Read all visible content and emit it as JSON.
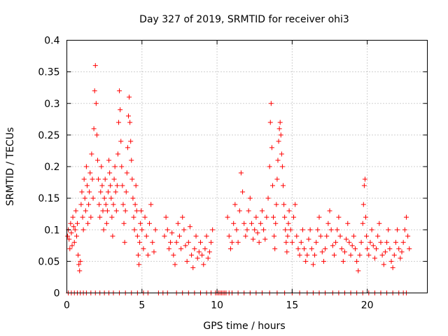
{
  "chart_data": {
    "type": "scatter",
    "title": "Day 327 of 2019, SRMTID for receiver ohi3",
    "xlabel": "GPS time / hours",
    "ylabel": "SRMTID / TECUs",
    "xlim": [
      0,
      24
    ],
    "ylim": [
      0,
      0.4
    ],
    "xticks": [
      0,
      5,
      10,
      15,
      20
    ],
    "xtick_labels": [
      "0",
      "5",
      "10",
      "15",
      "20"
    ],
    "yticks": [
      0,
      0.05,
      0.1,
      0.15,
      0.2,
      0.25,
      0.3,
      0.35,
      0.4
    ],
    "ytick_labels": [
      "0",
      "0.05",
      "0.1",
      "0.15",
      "0.2",
      "0.25",
      "0.3",
      "0.35",
      "0.4"
    ],
    "grid": true,
    "marker": "+",
    "color": "#ff0000",
    "series": [
      {
        "name": "SRMTID",
        "points": [
          [
            0.05,
            0.09
          ],
          [
            0.1,
            0.1
          ],
          [
            0.15,
            0.085
          ],
          [
            0.2,
            0.07
          ],
          [
            0.25,
            0.11
          ],
          [
            0.3,
            0.095
          ],
          [
            0.35,
            0.075
          ],
          [
            0.4,
            0.12
          ],
          [
            0.45,
            0.105
          ],
          [
            0.5,
            0.08
          ],
          [
            0.55,
            0.1
          ],
          [
            0.6,
            0.13
          ],
          [
            0.65,
            0.09
          ],
          [
            0.7,
            0.11
          ],
          [
            0.75,
            0.06
          ],
          [
            0.8,
            0.045
          ],
          [
            0.85,
            0.035
          ],
          [
            0.9,
            0.05
          ],
          [
            0.95,
            0.14
          ],
          [
            1.0,
            0.16
          ],
          [
            1.05,
            0.12
          ],
          [
            1.1,
            0.1
          ],
          [
            1.15,
            0.18
          ],
          [
            1.2,
            0.15
          ],
          [
            1.25,
            0.13
          ],
          [
            1.3,
            0.2
          ],
          [
            1.35,
            0.17
          ],
          [
            1.4,
            0.11
          ],
          [
            1.45,
            0.14
          ],
          [
            1.5,
            0.16
          ],
          [
            1.55,
            0.19
          ],
          [
            1.6,
            0.12
          ],
          [
            1.65,
            0.22
          ],
          [
            1.7,
            0.18
          ],
          [
            1.75,
            0.15
          ],
          [
            1.8,
            0.26
          ],
          [
            1.85,
            0.32
          ],
          [
            1.9,
            0.36
          ],
          [
            1.95,
            0.3
          ],
          [
            2.0,
            0.25
          ],
          [
            2.05,
            0.21
          ],
          [
            2.1,
            0.18
          ],
          [
            2.15,
            0.14
          ],
          [
            2.2,
            0.12
          ],
          [
            2.25,
            0.16
          ],
          [
            2.3,
            0.2
          ],
          [
            2.35,
            0.17
          ],
          [
            2.4,
            0.13
          ],
          [
            2.45,
            0.1
          ],
          [
            2.5,
            0.15
          ],
          [
            2.55,
            0.18
          ],
          [
            2.6,
            0.14
          ],
          [
            2.65,
            0.11
          ],
          [
            2.7,
            0.13
          ],
          [
            2.75,
            0.16
          ],
          [
            2.8,
            0.21
          ],
          [
            2.85,
            0.19
          ],
          [
            2.9,
            0.17
          ],
          [
            2.95,
            0.15
          ],
          [
            3.0,
            0.12
          ],
          [
            3.05,
            0.09
          ],
          [
            3.1,
            0.14
          ],
          [
            3.15,
            0.18
          ],
          [
            3.2,
            0.2
          ],
          [
            3.25,
            0.16
          ],
          [
            3.3,
            0.13
          ],
          [
            3.35,
            0.17
          ],
          [
            3.4,
            0.22
          ],
          [
            3.45,
            0.27
          ],
          [
            3.5,
            0.32
          ],
          [
            3.55,
            0.29
          ],
          [
            3.6,
            0.24
          ],
          [
            3.65,
            0.2
          ],
          [
            3.7,
            0.17
          ],
          [
            3.75,
            0.14
          ],
          [
            3.8,
            0.11
          ],
          [
            3.85,
            0.08
          ],
          [
            3.9,
            0.13
          ],
          [
            3.95,
            0.16
          ],
          [
            4.0,
            0.19
          ],
          [
            4.05,
            0.23
          ],
          [
            4.1,
            0.28
          ],
          [
            4.15,
            0.31
          ],
          [
            4.2,
            0.27
          ],
          [
            4.25,
            0.24
          ],
          [
            4.3,
            0.21
          ],
          [
            4.35,
            0.18
          ],
          [
            4.4,
            0.15
          ],
          [
            4.45,
            0.12
          ],
          [
            4.5,
            0.1
          ],
          [
            4.55,
            0.14
          ],
          [
            4.6,
            0.17
          ],
          [
            4.65,
            0.13
          ],
          [
            4.7,
            0.09
          ],
          [
            4.75,
            0.06
          ],
          [
            4.8,
            0.045
          ],
          [
            4.85,
            0.08
          ],
          [
            4.9,
            0.11
          ],
          [
            4.95,
            0.13
          ],
          [
            5.0,
            0.1
          ],
          [
            5.1,
            0.07
          ],
          [
            5.2,
            0.12
          ],
          [
            5.3,
            0.09
          ],
          [
            5.4,
            0.06
          ],
          [
            5.5,
            0.11
          ],
          [
            5.6,
            0.14
          ],
          [
            5.7,
            0.08
          ],
          [
            5.8,
            0.065
          ],
          [
            5.9,
            0.1
          ],
          [
            6.5,
            0.09
          ],
          [
            6.6,
            0.12
          ],
          [
            6.7,
            0.1
          ],
          [
            6.8,
            0.07
          ],
          [
            6.9,
            0.08
          ],
          [
            7.0,
            0.095
          ],
          [
            7.1,
            0.06
          ],
          [
            7.2,
            0.045
          ],
          [
            7.3,
            0.08
          ],
          [
            7.4,
            0.11
          ],
          [
            7.5,
            0.09
          ],
          [
            7.6,
            0.07
          ],
          [
            7.7,
            0.12
          ],
          [
            7.8,
            0.1
          ],
          [
            7.9,
            0.075
          ],
          [
            8.0,
            0.05
          ],
          [
            8.1,
            0.08
          ],
          [
            8.2,
            0.105
          ],
          [
            8.3,
            0.06
          ],
          [
            8.4,
            0.04
          ],
          [
            8.5,
            0.07
          ],
          [
            8.6,
            0.09
          ],
          [
            8.7,
            0.055
          ],
          [
            8.8,
            0.065
          ],
          [
            8.9,
            0.08
          ],
          [
            9.0,
            0.06
          ],
          [
            9.1,
            0.045
          ],
          [
            9.2,
            0.07
          ],
          [
            9.3,
            0.09
          ],
          [
            9.4,
            0.055
          ],
          [
            9.5,
            0.065
          ],
          [
            9.6,
            0.08
          ],
          [
            9.7,
            0.1
          ],
          [
            10.7,
            0.12
          ],
          [
            10.8,
            0.09
          ],
          [
            10.9,
            0.07
          ],
          [
            11.0,
            0.08
          ],
          [
            11.1,
            0.11
          ],
          [
            11.2,
            0.14
          ],
          [
            11.3,
            0.1
          ],
          [
            11.4,
            0.08
          ],
          [
            11.5,
            0.13
          ],
          [
            11.6,
            0.19
          ],
          [
            11.7,
            0.16
          ],
          [
            11.8,
            0.11
          ],
          [
            11.9,
            0.09
          ],
          [
            12.0,
            0.1
          ],
          [
            12.1,
            0.13
          ],
          [
            12.2,
            0.15
          ],
          [
            12.3,
            0.11
          ],
          [
            12.4,
            0.085
          ],
          [
            12.5,
            0.1
          ],
          [
            12.6,
            0.12
          ],
          [
            12.7,
            0.095
          ],
          [
            12.8,
            0.08
          ],
          [
            12.9,
            0.11
          ],
          [
            13.0,
            0.13
          ],
          [
            13.1,
            0.1
          ],
          [
            13.2,
            0.085
          ],
          [
            13.3,
            0.12
          ],
          [
            13.4,
            0.15
          ],
          [
            13.5,
            0.2
          ],
          [
            13.55,
            0.27
          ],
          [
            13.6,
            0.3
          ],
          [
            13.65,
            0.23
          ],
          [
            13.7,
            0.17
          ],
          [
            13.75,
            0.12
          ],
          [
            13.8,
            0.09
          ],
          [
            13.85,
            0.07
          ],
          [
            13.9,
            0.11
          ],
          [
            13.95,
            0.14
          ],
          [
            14.0,
            0.18
          ],
          [
            14.05,
            0.21
          ],
          [
            14.1,
            0.24
          ],
          [
            14.15,
            0.26
          ],
          [
            14.2,
            0.27
          ],
          [
            14.25,
            0.25
          ],
          [
            14.3,
            0.22
          ],
          [
            14.35,
            0.2
          ],
          [
            14.4,
            0.17
          ],
          [
            14.45,
            0.14
          ],
          [
            14.5,
            0.12
          ],
          [
            14.55,
            0.1
          ],
          [
            14.6,
            0.08
          ],
          [
            14.65,
            0.065
          ],
          [
            14.7,
            0.09
          ],
          [
            14.75,
            0.11
          ],
          [
            14.8,
            0.13
          ],
          [
            14.9,
            0.1
          ],
          [
            15.0,
            0.08
          ],
          [
            15.1,
            0.12
          ],
          [
            15.2,
            0.14
          ],
          [
            15.3,
            0.09
          ],
          [
            15.4,
            0.07
          ],
          [
            15.5,
            0.06
          ],
          [
            15.6,
            0.08
          ],
          [
            15.7,
            0.1
          ],
          [
            15.8,
            0.07
          ],
          [
            15.9,
            0.05
          ],
          [
            16.0,
            0.06
          ],
          [
            16.1,
            0.085
          ],
          [
            16.2,
            0.1
          ],
          [
            16.3,
            0.07
          ],
          [
            16.4,
            0.045
          ],
          [
            16.5,
            0.06
          ],
          [
            16.6,
            0.08
          ],
          [
            16.7,
            0.1
          ],
          [
            16.8,
            0.12
          ],
          [
            16.9,
            0.09
          ],
          [
            17.0,
            0.065
          ],
          [
            17.1,
            0.05
          ],
          [
            17.2,
            0.07
          ],
          [
            17.3,
            0.09
          ],
          [
            17.4,
            0.11
          ],
          [
            17.5,
            0.13
          ],
          [
            17.6,
            0.1
          ],
          [
            17.7,
            0.075
          ],
          [
            17.8,
            0.06
          ],
          [
            17.9,
            0.08
          ],
          [
            18.0,
            0.1
          ],
          [
            18.1,
            0.12
          ],
          [
            18.2,
            0.09
          ],
          [
            18.3,
            0.07
          ],
          [
            18.4,
            0.05
          ],
          [
            18.5,
            0.065
          ],
          [
            18.6,
            0.085
          ],
          [
            18.7,
            0.11
          ],
          [
            18.8,
            0.08
          ],
          [
            18.9,
            0.06
          ],
          [
            19.0,
            0.075
          ],
          [
            19.1,
            0.09
          ],
          [
            19.2,
            0.07
          ],
          [
            19.3,
            0.05
          ],
          [
            19.4,
            0.035
          ],
          [
            19.5,
            0.06
          ],
          [
            19.6,
            0.08
          ],
          [
            19.7,
            0.11
          ],
          [
            19.75,
            0.14
          ],
          [
            19.8,
            0.17
          ],
          [
            19.85,
            0.18
          ],
          [
            19.9,
            0.12
          ],
          [
            19.95,
            0.09
          ],
          [
            20.0,
            0.07
          ],
          [
            20.1,
            0.06
          ],
          [
            20.2,
            0.08
          ],
          [
            20.3,
            0.1
          ],
          [
            20.4,
            0.075
          ],
          [
            20.5,
            0.055
          ],
          [
            20.6,
            0.07
          ],
          [
            20.7,
            0.09
          ],
          [
            20.8,
            0.11
          ],
          [
            20.9,
            0.08
          ],
          [
            21.0,
            0.06
          ],
          [
            21.1,
            0.045
          ],
          [
            21.2,
            0.065
          ],
          [
            21.3,
            0.08
          ],
          [
            21.4,
            0.1
          ],
          [
            21.5,
            0.07
          ],
          [
            21.6,
            0.05
          ],
          [
            21.7,
            0.04
          ],
          [
            21.8,
            0.06
          ],
          [
            21.9,
            0.08
          ],
          [
            22.0,
            0.1
          ],
          [
            22.1,
            0.07
          ],
          [
            22.2,
            0.055
          ],
          [
            22.3,
            0.065
          ],
          [
            22.4,
            0.08
          ],
          [
            22.5,
            0.1
          ],
          [
            22.6,
            0.12
          ],
          [
            22.7,
            0.09
          ],
          [
            22.8,
            0.07
          ]
        ]
      }
    ],
    "zero_points_x": [
      0.1,
      0.3,
      0.5,
      0.7,
      0.9,
      1.1,
      1.3,
      1.6,
      1.9,
      2.2,
      2.5,
      2.8,
      3.1,
      3.5,
      3.9,
      4.3,
      4.7,
      5.1,
      5.4,
      6.1,
      6.4,
      6.7,
      7.3,
      7.7,
      8.1,
      8.5,
      8.9,
      9.3,
      9.6,
      9.9,
      10.0,
      10.1,
      10.2,
      10.3,
      10.4,
      10.5,
      10.6,
      10.8,
      11.0,
      11.4,
      11.8,
      12.2,
      12.6,
      13.0,
      13.5,
      14.0,
      14.5,
      15.0,
      15.5,
      16.0,
      16.4,
      16.8,
      17.2,
      17.7,
      18.1,
      18.5,
      18.9,
      19.3,
      19.7,
      20.1,
      20.5,
      20.9,
      21.3,
      21.7,
      22.1,
      22.4,
      22.6
    ]
  }
}
